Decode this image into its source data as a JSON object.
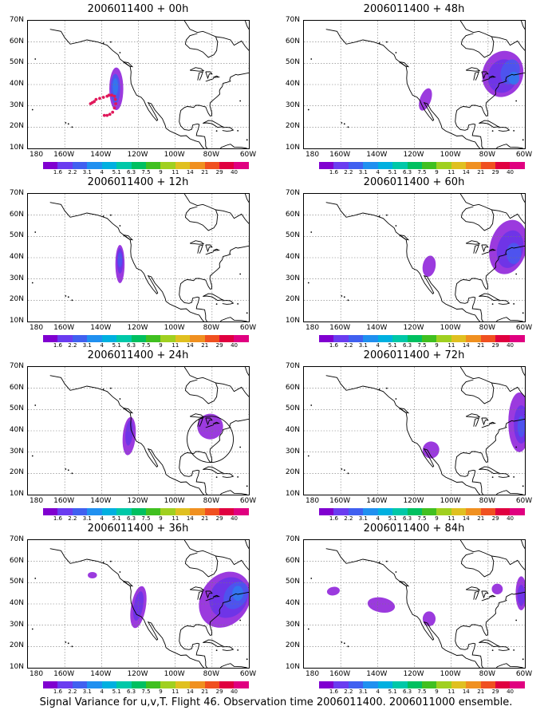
{
  "panels": [
    {
      "title": "2006011400 + 00h"
    },
    {
      "title": "2006011400 + 48h"
    },
    {
      "title": "2006011400 + 12h"
    },
    {
      "title": "2006011400 + 60h"
    },
    {
      "title": "2006011400 + 24h"
    },
    {
      "title": "2006011400 + 72h"
    },
    {
      "title": "2006011400 + 36h"
    },
    {
      "title": "2006011400 + 84h"
    }
  ],
  "lat_labels": [
    "70N",
    "60N",
    "50N",
    "40N",
    "30N",
    "20N",
    "10N"
  ],
  "lon_labels": [
    "180",
    "160W",
    "140W",
    "120W",
    "100W",
    "80W",
    "60W"
  ],
  "colorbar": {
    "labels": [
      "1.6",
      "2.2",
      "3.1",
      "4",
      "5.1",
      "6.3",
      "7.5",
      "9",
      "11",
      "14",
      "21",
      "29",
      "40"
    ],
    "colors": [
      "#8000d0",
      "#6a3cf0",
      "#4060f0",
      "#2090f0",
      "#00b0e0",
      "#00c8a8",
      "#00c060",
      "#40c020",
      "#a0d020",
      "#e0c020",
      "#f09020",
      "#f05020",
      "#e00040",
      "#e00080"
    ]
  },
  "caption": "Signal Variance for u,v,T. Flight 46. Observation time 2006011400. 2006011000 ensemble."
}
